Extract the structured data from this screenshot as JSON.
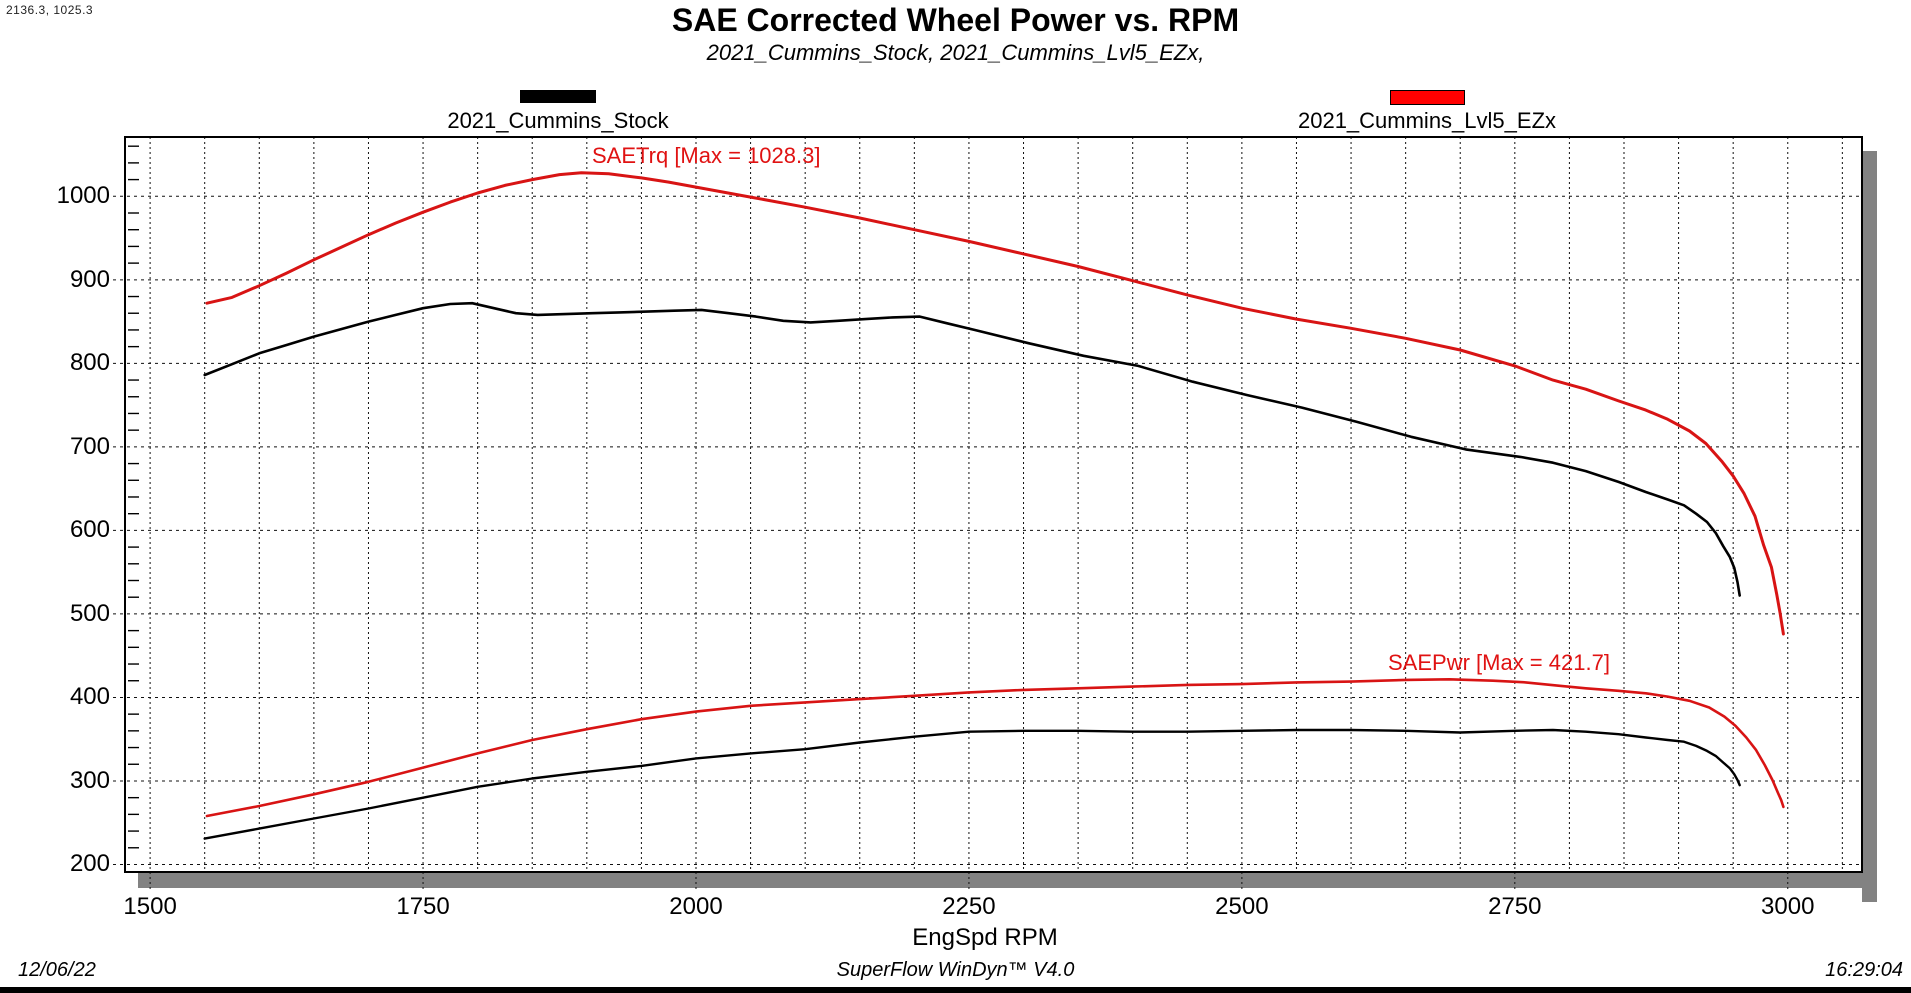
{
  "window": {
    "cursor_readout": "2136.3, 1025.3"
  },
  "header": {
    "title": "SAE Corrected Wheel Power vs. RPM",
    "subtitle": "2021_Cummins_Stock, 2021_Cummins_Lvl5_EZx,"
  },
  "legend": [
    {
      "label": "2021_Cummins_Stock",
      "color": "#000000"
    },
    {
      "label": "2021_Cummins_Lvl5_EZx",
      "color": "#ff0000"
    }
  ],
  "footer": {
    "date": "12/06/22",
    "app": "SuperFlow WinDyn™ V4.0",
    "time": "16:29:04"
  },
  "chart_data": {
    "type": "line",
    "title": "SAE Corrected Wheel Power vs. RPM",
    "subtitle": "2021_Cummins_Stock, 2021_Cummins_Lvl5_EZx,",
    "xlabel": "EngSpd RPM",
    "ylabel": "",
    "xlim": [
      1477,
      3068
    ],
    "ylim": [
      191,
      1071
    ],
    "x_major_ticks": [
      1500,
      1750,
      2000,
      2250,
      2500,
      2750,
      3000
    ],
    "x_minor_step": 50,
    "y_major_ticks": [
      200,
      300,
      400,
      500,
      600,
      700,
      800,
      900,
      1000
    ],
    "y_minor_step": 20,
    "grid": "dotted",
    "legend_position": "top",
    "annotations": [
      {
        "text": "SAETrq [Max = 1028.3]",
        "color": "#e01212"
      },
      {
        "text": "SAEPwr [Max = 421.7]",
        "color": "#e01212"
      }
    ],
    "series": [
      {
        "name": "SAETrq 2021_Cummins_Lvl5_EZx",
        "color": "#d81414",
        "width": 3,
        "points": [
          [
            1552,
            872
          ],
          [
            1575,
            879
          ],
          [
            1600,
            893
          ],
          [
            1625,
            908
          ],
          [
            1650,
            924
          ],
          [
            1675,
            939
          ],
          [
            1700,
            954
          ],
          [
            1725,
            968
          ],
          [
            1750,
            981
          ],
          [
            1775,
            993
          ],
          [
            1800,
            1004
          ],
          [
            1825,
            1013
          ],
          [
            1850,
            1020
          ],
          [
            1875,
            1026
          ],
          [
            1895,
            1028.3
          ],
          [
            1920,
            1027
          ],
          [
            1950,
            1022
          ],
          [
            1975,
            1017
          ],
          [
            2000,
            1011
          ],
          [
            2050,
            999
          ],
          [
            2100,
            987
          ],
          [
            2150,
            974
          ],
          [
            2200,
            960
          ],
          [
            2250,
            946
          ],
          [
            2300,
            931
          ],
          [
            2350,
            916
          ],
          [
            2400,
            899
          ],
          [
            2450,
            882
          ],
          [
            2500,
            866
          ],
          [
            2550,
            853
          ],
          [
            2600,
            842
          ],
          [
            2650,
            830
          ],
          [
            2700,
            816
          ],
          [
            2750,
            797
          ],
          [
            2785,
            780
          ],
          [
            2815,
            769
          ],
          [
            2845,
            755
          ],
          [
            2870,
            744
          ],
          [
            2890,
            733
          ],
          [
            2910,
            719
          ],
          [
            2925,
            704
          ],
          [
            2940,
            682
          ],
          [
            2950,
            665
          ],
          [
            2960,
            644
          ],
          [
            2970,
            617
          ],
          [
            2978,
            582
          ],
          [
            2985,
            556
          ],
          [
            2990,
            523
          ],
          [
            2993,
            501
          ],
          [
            2996,
            476
          ]
        ]
      },
      {
        "name": "SAETrq 2021_Cummins_Stock",
        "color": "#000000",
        "width": 2.6,
        "points": [
          [
            1550,
            786
          ],
          [
            1575,
            799
          ],
          [
            1600,
            812
          ],
          [
            1625,
            822
          ],
          [
            1650,
            832
          ],
          [
            1675,
            841
          ],
          [
            1700,
            850
          ],
          [
            1725,
            858
          ],
          [
            1750,
            866
          ],
          [
            1775,
            871
          ],
          [
            1795,
            872
          ],
          [
            1815,
            866
          ],
          [
            1835,
            860
          ],
          [
            1855,
            858
          ],
          [
            1880,
            859
          ],
          [
            1905,
            860
          ],
          [
            1930,
            861
          ],
          [
            1955,
            862
          ],
          [
            1980,
            863
          ],
          [
            2005,
            864
          ],
          [
            2030,
            860
          ],
          [
            2055,
            856
          ],
          [
            2080,
            851
          ],
          [
            2105,
            849
          ],
          [
            2130,
            851
          ],
          [
            2155,
            853
          ],
          [
            2180,
            855
          ],
          [
            2205,
            856
          ],
          [
            2230,
            848
          ],
          [
            2255,
            840
          ],
          [
            2305,
            824
          ],
          [
            2355,
            809
          ],
          [
            2405,
            797
          ],
          [
            2455,
            778
          ],
          [
            2505,
            762
          ],
          [
            2555,
            747
          ],
          [
            2605,
            730
          ],
          [
            2655,
            712
          ],
          [
            2705,
            697
          ],
          [
            2755,
            688
          ],
          [
            2785,
            681
          ],
          [
            2815,
            671
          ],
          [
            2845,
            658
          ],
          [
            2870,
            646
          ],
          [
            2890,
            637
          ],
          [
            2905,
            630
          ],
          [
            2916,
            620
          ],
          [
            2926,
            610
          ],
          [
            2934,
            597
          ],
          [
            2941,
            581
          ],
          [
            2947,
            568
          ],
          [
            2951,
            555
          ],
          [
            2954,
            538
          ],
          [
            2956,
            522
          ]
        ]
      },
      {
        "name": "SAEPwr 2021_Cummins_Lvl5_EZx",
        "color": "#d81414",
        "width": 2.6,
        "points": [
          [
            1552,
            258
          ],
          [
            1600,
            270
          ],
          [
            1650,
            284
          ],
          [
            1700,
            299
          ],
          [
            1750,
            316
          ],
          [
            1800,
            333
          ],
          [
            1850,
            349
          ],
          [
            1900,
            362
          ],
          [
            1950,
            374
          ],
          [
            2000,
            383
          ],
          [
            2050,
            390
          ],
          [
            2100,
            394
          ],
          [
            2150,
            398
          ],
          [
            2200,
            402
          ],
          [
            2250,
            406
          ],
          [
            2300,
            409
          ],
          [
            2350,
            411
          ],
          [
            2400,
            413
          ],
          [
            2450,
            415
          ],
          [
            2500,
            416
          ],
          [
            2550,
            418
          ],
          [
            2600,
            419
          ],
          [
            2650,
            421
          ],
          [
            2690,
            421.7
          ],
          [
            2730,
            420
          ],
          [
            2760,
            418
          ],
          [
            2790,
            414
          ],
          [
            2815,
            411
          ],
          [
            2845,
            408
          ],
          [
            2870,
            405
          ],
          [
            2890,
            401
          ],
          [
            2910,
            396
          ],
          [
            2928,
            388
          ],
          [
            2942,
            377
          ],
          [
            2952,
            366
          ],
          [
            2962,
            352
          ],
          [
            2971,
            337
          ],
          [
            2979,
            319
          ],
          [
            2986,
            301
          ],
          [
            2991,
            286
          ],
          [
            2994,
            277
          ],
          [
            2996,
            269
          ]
        ]
      },
      {
        "name": "SAEPwr 2021_Cummins_Stock",
        "color": "#000000",
        "width": 2.4,
        "points": [
          [
            1550,
            231
          ],
          [
            1600,
            243
          ],
          [
            1650,
            255
          ],
          [
            1700,
            267
          ],
          [
            1750,
            280
          ],
          [
            1800,
            293
          ],
          [
            1850,
            303
          ],
          [
            1900,
            311
          ],
          [
            1950,
            318
          ],
          [
            2000,
            327
          ],
          [
            2050,
            333
          ],
          [
            2100,
            338
          ],
          [
            2150,
            346
          ],
          [
            2200,
            353
          ],
          [
            2250,
            359
          ],
          [
            2300,
            360
          ],
          [
            2350,
            360
          ],
          [
            2400,
            359
          ],
          [
            2450,
            359
          ],
          [
            2500,
            360
          ],
          [
            2550,
            361
          ],
          [
            2600,
            361
          ],
          [
            2650,
            360
          ],
          [
            2700,
            358
          ],
          [
            2750,
            360
          ],
          [
            2785,
            361
          ],
          [
            2815,
            359
          ],
          [
            2845,
            356
          ],
          [
            2870,
            352
          ],
          [
            2890,
            349
          ],
          [
            2905,
            347
          ],
          [
            2916,
            342
          ],
          [
            2926,
            336
          ],
          [
            2934,
            330
          ],
          [
            2941,
            322
          ],
          [
            2947,
            315
          ],
          [
            2951,
            308
          ],
          [
            2954,
            301
          ],
          [
            2956,
            295
          ]
        ]
      }
    ]
  }
}
